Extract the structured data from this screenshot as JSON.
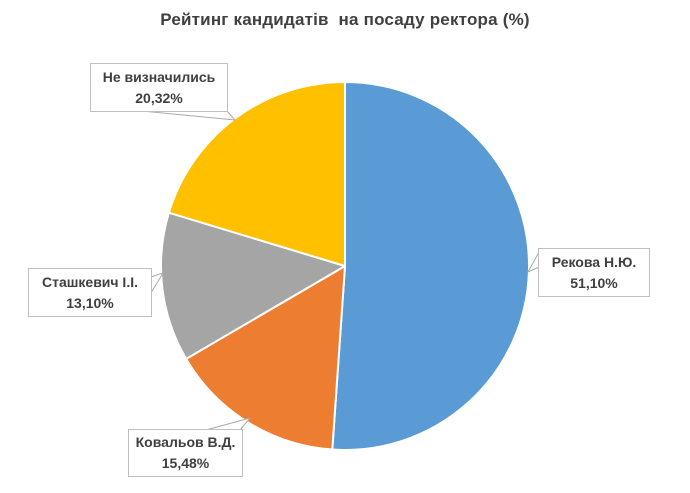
{
  "page": {
    "background": "#FFFFFF"
  },
  "chart_data": {
    "type": "pie",
    "title": "Рейтинг кандидатів  на посаду ректора (%)",
    "unit": "%",
    "start_angle_deg": 0,
    "direction": "clockwise",
    "legend": "none",
    "label_style": "callout boxes with gray leader lines",
    "slices": [
      {
        "key": "rekova",
        "label": "Рекова Н.Ю.",
        "value": 51.1,
        "display_value": "51,10%",
        "color": "#5B9BD5"
      },
      {
        "key": "kovalov",
        "label": "Ковальов В.Д.",
        "value": 15.48,
        "display_value": "15,48%",
        "color": "#ED7D31"
      },
      {
        "key": "stashkevych",
        "label": "Сташкевич І.І.",
        "value": 13.1,
        "display_value": "13,10%",
        "color": "#A5A5A5"
      },
      {
        "key": "undecided",
        "label": "Не визначились",
        "value": 20.32,
        "display_value": "20,32%",
        "color": "#FFC000"
      }
    ]
  },
  "colors": {
    "title_text": "#404040",
    "label_text": "#404040",
    "callout_fill": "#FFFFFF",
    "callout_border": "#BFBFBF",
    "leader_line": "#ABABAB",
    "slice_separator": "#FFFFFF"
  }
}
